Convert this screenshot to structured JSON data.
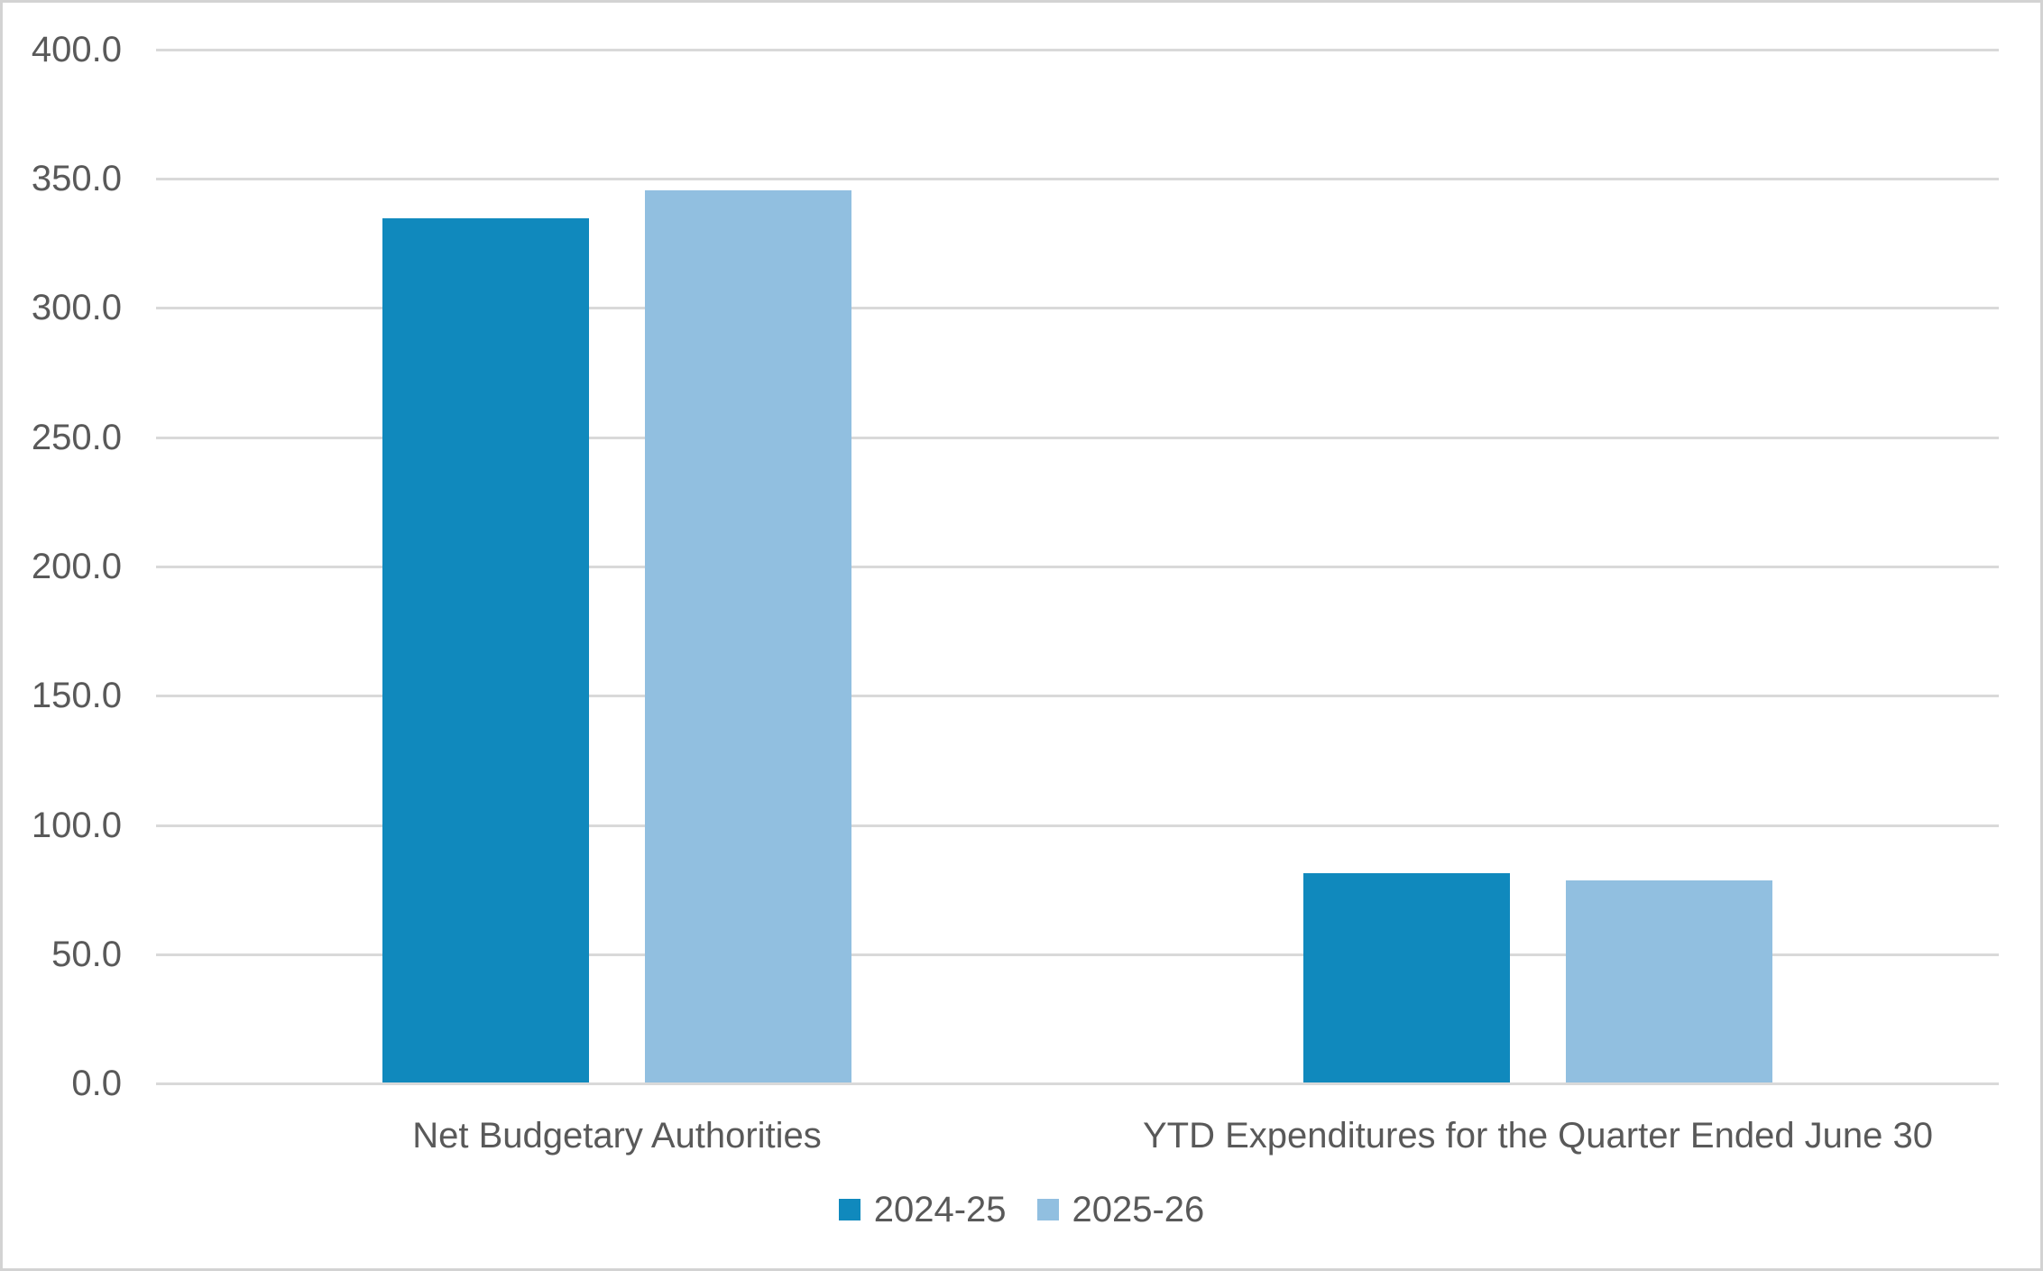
{
  "chart_data": {
    "type": "bar",
    "title": "",
    "xlabel": "",
    "ylabel": "",
    "categories": [
      "Net Budgetary Authorities",
      "YTD Expenditures for the Quarter Ended June 30"
    ],
    "series": [
      {
        "name": "2024-25",
        "color": "#1089BD",
        "values": [
          334.4,
          81.1
        ]
      },
      {
        "name": "2025-26",
        "color": "#91BFE0",
        "values": [
          345.3,
          78.3
        ]
      }
    ],
    "ylim": [
      0,
      400
    ],
    "ytick_labels": [
      "400.0",
      "350.0",
      "300.0",
      "250.0",
      "200.0",
      "150.0",
      "100.0",
      "50.0",
      "0.0"
    ],
    "grid": true,
    "legend_position": "bottom",
    "colors": {
      "background": "#FFFFFF",
      "gridline": "#D9D9D9",
      "axis_line": "#D9D9D9",
      "text": "#595959",
      "border": "#D3D3D3"
    }
  }
}
